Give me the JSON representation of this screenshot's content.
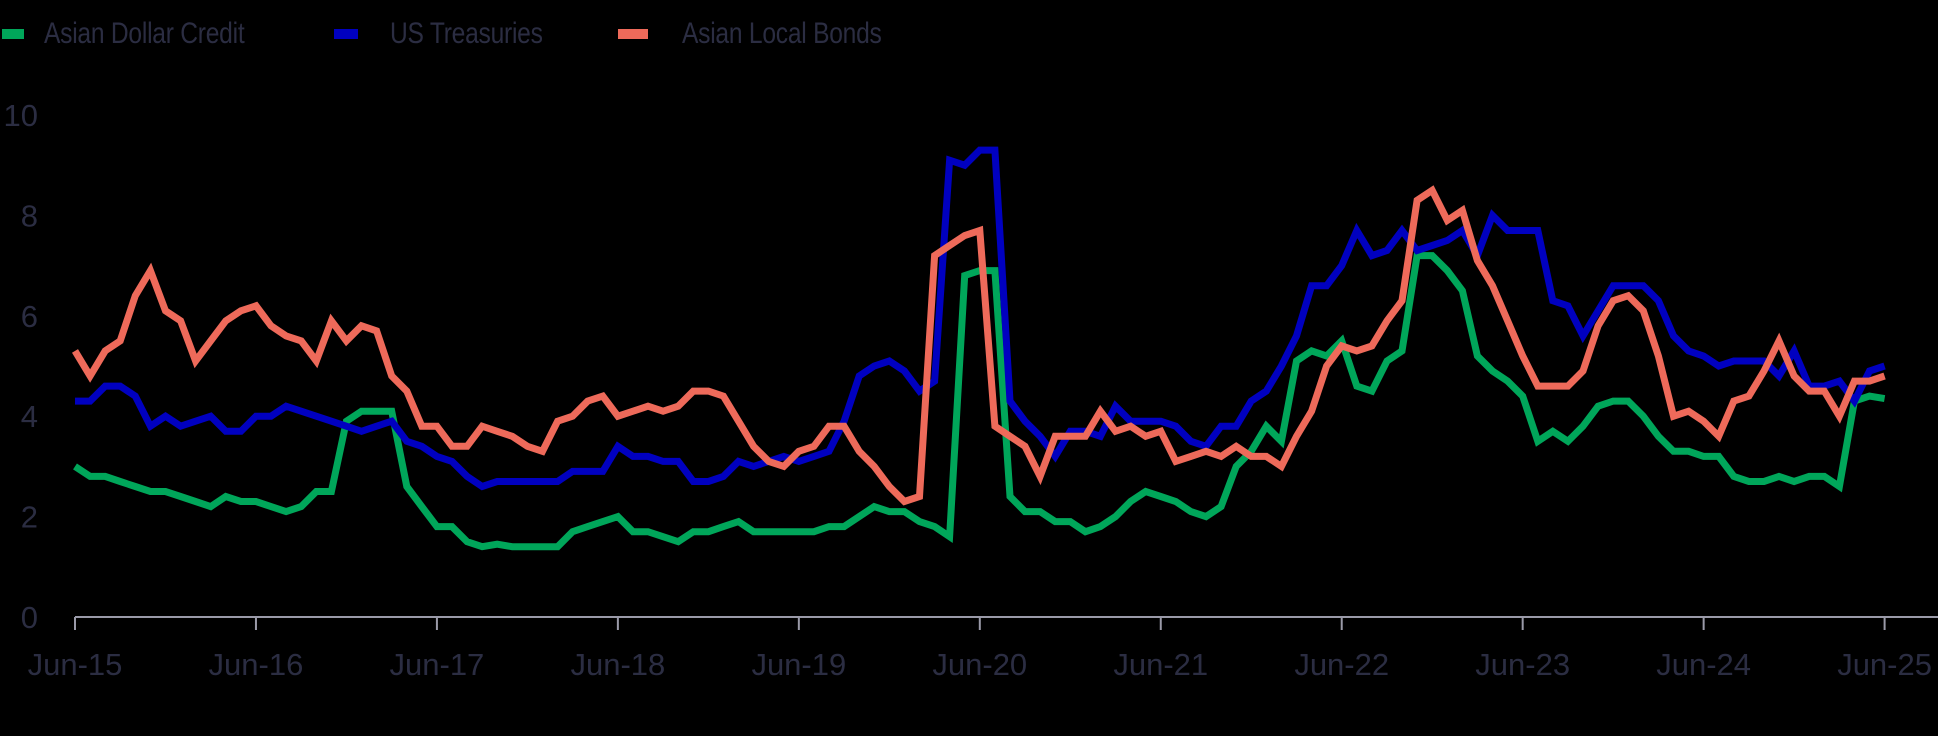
{
  "legend": [
    {
      "label": "Asian Dollar Credit",
      "color": "#00a65a"
    },
    {
      "label": "US Treasuries",
      "color": "#0000c0"
    },
    {
      "label": "Asian Local Bonds",
      "color": "#ee6a5a"
    }
  ],
  "chart_data": {
    "type": "line",
    "title": "",
    "xlabel": "",
    "ylabel": "",
    "ylim": [
      0,
      10
    ],
    "yticks": [
      0,
      2,
      4,
      6,
      8,
      10
    ],
    "xticks": [
      "Jun-15",
      "Jun-16",
      "Jun-17",
      "Jun-18",
      "Jun-19",
      "Jun-20",
      "Jun-21",
      "Jun-22",
      "Jun-23",
      "Jun-24",
      "Jun-25"
    ],
    "x_start": "Jun-15",
    "x_end": "Jun-25",
    "frequency": "monthly",
    "grid": false,
    "legend_position": "top-left",
    "series": [
      {
        "name": "Asian Dollar Credit",
        "color": "#00a65a",
        "values": [
          3.0,
          2.8,
          2.8,
          2.7,
          2.6,
          2.5,
          2.5,
          2.4,
          2.3,
          2.2,
          2.4,
          2.3,
          2.3,
          2.2,
          2.1,
          2.2,
          2.5,
          2.5,
          3.9,
          4.1,
          4.1,
          4.1,
          2.6,
          2.2,
          1.8,
          1.8,
          1.5,
          1.4,
          1.45,
          1.4,
          1.4,
          1.4,
          1.4,
          1.7,
          1.8,
          1.9,
          2.0,
          1.7,
          1.7,
          1.6,
          1.5,
          1.7,
          1.7,
          1.8,
          1.9,
          1.7,
          1.7,
          1.7,
          1.7,
          1.7,
          1.8,
          1.8,
          2.0,
          2.2,
          2.1,
          2.1,
          1.9,
          1.8,
          1.6,
          6.8,
          6.9,
          6.9,
          2.4,
          2.1,
          2.1,
          1.9,
          1.9,
          1.7,
          1.8,
          2.0,
          2.3,
          2.5,
          2.4,
          2.3,
          2.1,
          2.0,
          2.2,
          3.0,
          3.3,
          3.8,
          3.5,
          5.1,
          5.3,
          5.2,
          5.5,
          4.6,
          4.5,
          5.1,
          5.3,
          7.2,
          7.2,
          6.9,
          6.5,
          5.2,
          4.9,
          4.7,
          4.4,
          3.5,
          3.7,
          3.5,
          3.8,
          4.2,
          4.3,
          4.3,
          4.0,
          3.6,
          3.3,
          3.3,
          3.2,
          3.2,
          2.8,
          2.7,
          2.7,
          2.8,
          2.7,
          2.8,
          2.8,
          2.6,
          4.3,
          4.4,
          4.35
        ]
      },
      {
        "name": "US Treasuries",
        "color": "#0000c0",
        "values": [
          4.3,
          4.3,
          4.6,
          4.6,
          4.4,
          3.8,
          4.0,
          3.8,
          3.9,
          4.0,
          3.7,
          3.7,
          4.0,
          4.0,
          4.2,
          4.1,
          4.0,
          3.9,
          3.8,
          3.7,
          3.8,
          3.9,
          3.5,
          3.4,
          3.2,
          3.1,
          2.8,
          2.6,
          2.7,
          2.7,
          2.7,
          2.7,
          2.7,
          2.9,
          2.9,
          2.9,
          3.4,
          3.2,
          3.2,
          3.1,
          3.1,
          2.7,
          2.7,
          2.8,
          3.1,
          3.0,
          3.1,
          3.2,
          3.1,
          3.2,
          3.3,
          3.9,
          4.8,
          5.0,
          5.1,
          4.9,
          4.5,
          4.7,
          9.1,
          9.0,
          9.3,
          9.3,
          4.3,
          3.9,
          3.6,
          3.2,
          3.7,
          3.7,
          3.6,
          4.2,
          3.9,
          3.9,
          3.9,
          3.8,
          3.5,
          3.4,
          3.8,
          3.8,
          4.3,
          4.5,
          5.0,
          5.6,
          6.6,
          6.6,
          7.0,
          7.7,
          7.2,
          7.3,
          7.7,
          7.3,
          7.4,
          7.5,
          7.7,
          7.2,
          8.0,
          7.7,
          7.7,
          7.7,
          6.3,
          6.2,
          5.6,
          6.1,
          6.6,
          6.6,
          6.6,
          6.3,
          5.6,
          5.3,
          5.2,
          5.0,
          5.1,
          5.1,
          5.1,
          4.8,
          5.3,
          4.6,
          4.6,
          4.7,
          4.3,
          4.9,
          5.0
        ]
      },
      {
        "name": "Asian Local Bonds",
        "color": "#ee6a5a",
        "values": [
          5.3,
          4.8,
          5.3,
          5.5,
          6.4,
          6.9,
          6.1,
          5.9,
          5.1,
          5.5,
          5.9,
          6.1,
          6.2,
          5.8,
          5.6,
          5.5,
          5.1,
          5.9,
          5.5,
          5.8,
          5.7,
          4.8,
          4.5,
          3.8,
          3.8,
          3.4,
          3.4,
          3.8,
          3.7,
          3.6,
          3.4,
          3.3,
          3.9,
          4.0,
          4.3,
          4.4,
          4.0,
          4.1,
          4.2,
          4.1,
          4.2,
          4.5,
          4.5,
          4.4,
          3.9,
          3.4,
          3.1,
          3.0,
          3.3,
          3.4,
          3.8,
          3.8,
          3.3,
          3.0,
          2.6,
          2.3,
          2.4,
          7.2,
          7.4,
          7.6,
          7.7,
          3.8,
          3.6,
          3.4,
          2.8,
          3.6,
          3.6,
          3.6,
          4.1,
          3.7,
          3.8,
          3.6,
          3.7,
          3.1,
          3.2,
          3.3,
          3.2,
          3.4,
          3.2,
          3.2,
          3.0,
          3.6,
          4.1,
          5.0,
          5.4,
          5.3,
          5.4,
          5.9,
          6.3,
          8.3,
          8.5,
          7.9,
          8.1,
          7.1,
          6.6,
          5.9,
          5.2,
          4.6,
          4.6,
          4.6,
          4.9,
          5.8,
          6.3,
          6.4,
          6.1,
          5.2,
          4.0,
          4.1,
          3.9,
          3.6,
          4.3,
          4.4,
          4.9,
          5.5,
          4.8,
          4.5,
          4.5,
          4.0,
          4.7,
          4.7,
          4.8
        ]
      }
    ]
  }
}
